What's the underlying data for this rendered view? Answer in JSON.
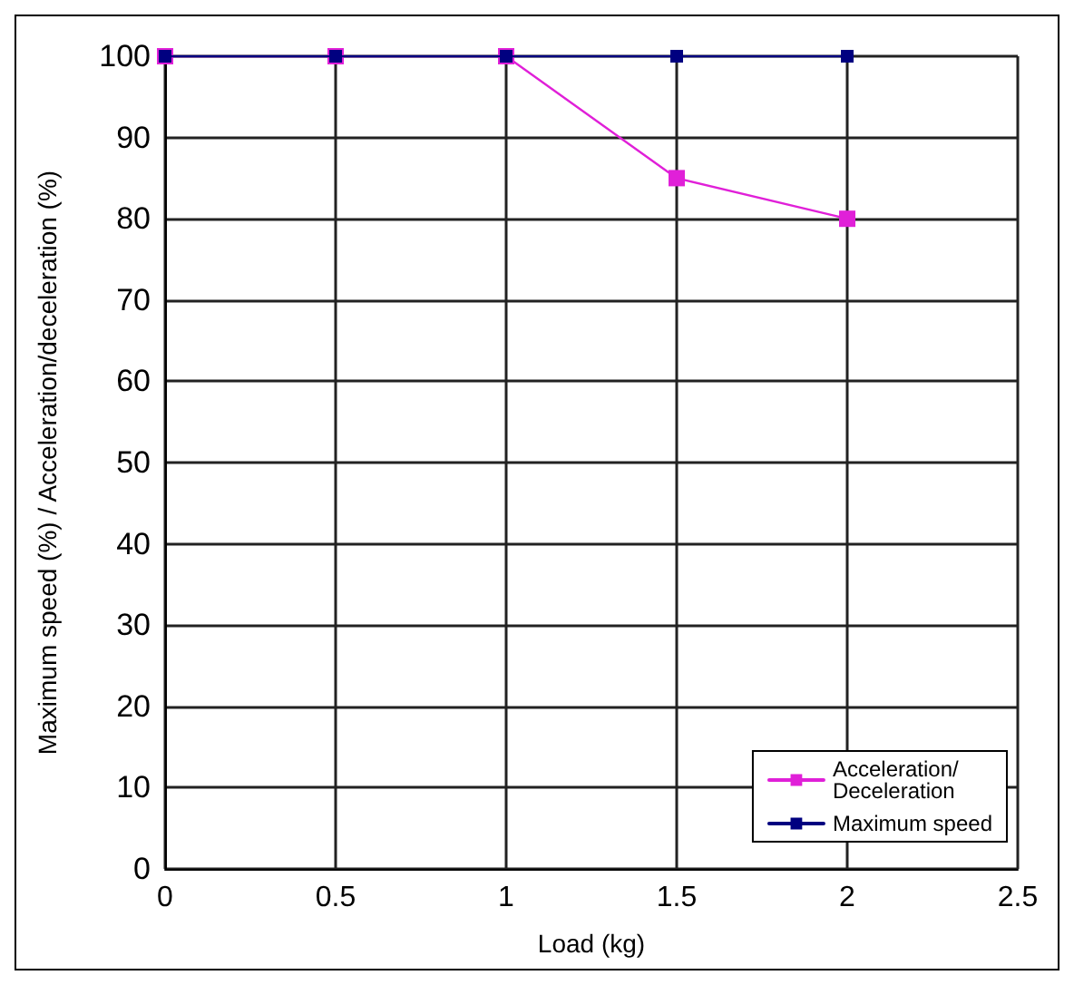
{
  "chart_data": {
    "type": "line",
    "xlabel": "Load (kg)",
    "ylabel": "Maximum speed (%) / Acceleration/deceleration (%)",
    "x": [
      0,
      0.5,
      1,
      1.5,
      2
    ],
    "series": [
      {
        "name": "Acceleration/\nDeceleration",
        "color": "#e020d8",
        "values": [
          100,
          100,
          100,
          85,
          80
        ]
      },
      {
        "name": "Maximum speed",
        "color": "#000080",
        "values": [
          100,
          100,
          100,
          100,
          100
        ]
      }
    ],
    "xlim": [
      0,
      2.5
    ],
    "xticks": [
      0,
      0.5,
      1,
      1.5,
      2,
      2.5
    ],
    "ylim": [
      0,
      100
    ],
    "yticks": [
      0,
      10,
      20,
      30,
      40,
      50,
      60,
      70,
      80,
      90,
      100
    ],
    "grid": true,
    "legend": "bottom right",
    "marker": "square",
    "line_style": "solid"
  }
}
